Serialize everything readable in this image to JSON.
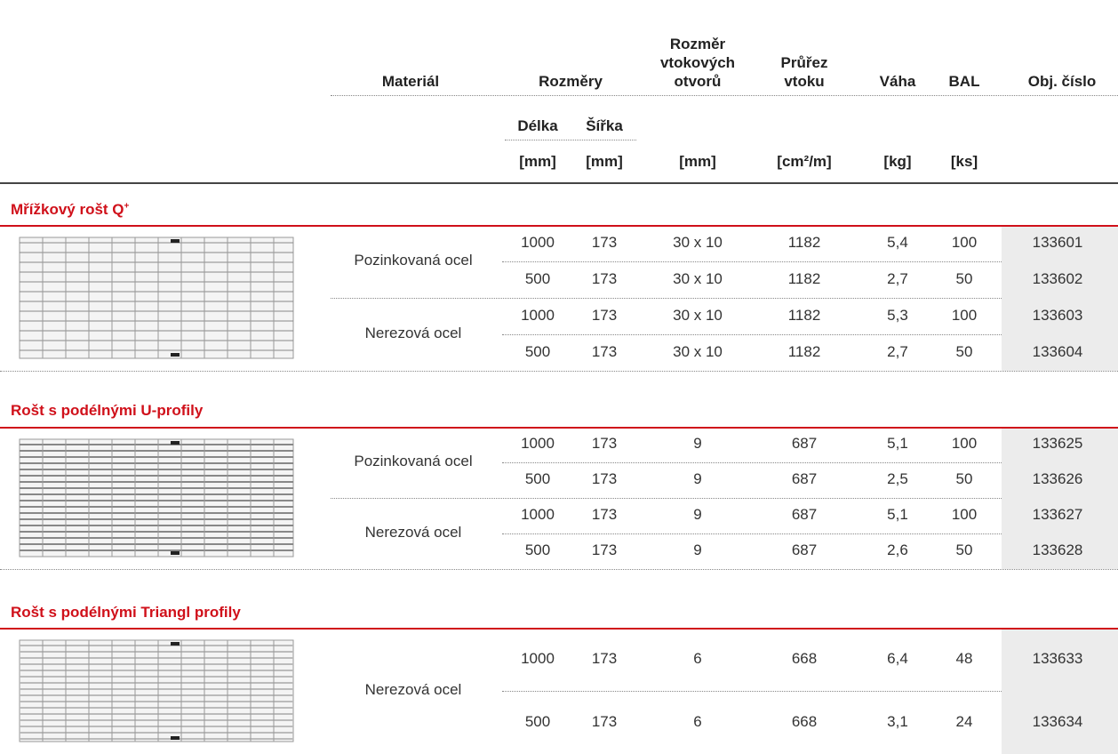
{
  "header": {
    "material": "Materiál",
    "dimensions": "Rozměry",
    "inlet_size": [
      "Rozměr",
      "vtokových",
      "otvorů"
    ],
    "inlet_area": [
      "Průřez",
      "vtoku"
    ],
    "weight": "Váha",
    "pack": "BAL",
    "order_no": "Obj. číslo",
    "length": "Délka",
    "width": "Šířka",
    "units": [
      "[mm]",
      "[mm]",
      "[mm]",
      "[cm²/m]",
      "[kg]",
      "[ks]"
    ]
  },
  "sections": [
    {
      "title": "Mřížkový rošt Q",
      "title_sup": "+",
      "groups": [
        {
          "material": "Pozinkovaná ocel",
          "rows": [
            [
              "1000",
              "173",
              "30 x 10",
              "1182",
              "5,4",
              "100",
              "133601"
            ],
            [
              "500",
              "173",
              "30 x 10",
              "1182",
              "2,7",
              "50",
              "133602"
            ]
          ]
        },
        {
          "material": "Nerezová ocel",
          "rows": [
            [
              "1000",
              "173",
              "30 x 10",
              "1182",
              "5,3",
              "100",
              "133603"
            ],
            [
              "500",
              "173",
              "30 x 10",
              "1182",
              "2,7",
              "50",
              "133604"
            ]
          ]
        }
      ]
    },
    {
      "title": "Rošt s podélnými U-profily",
      "groups": [
        {
          "material": "Pozinkovaná ocel",
          "rows": [
            [
              "1000",
              "173",
              "9",
              "687",
              "5,1",
              "100",
              "133625"
            ],
            [
              "500",
              "173",
              "9",
              "687",
              "2,5",
              "50",
              "133626"
            ]
          ]
        },
        {
          "material": "Nerezová ocel",
          "rows": [
            [
              "1000",
              "173",
              "9",
              "687",
              "5,1",
              "100",
              "133627"
            ],
            [
              "500",
              "173",
              "9",
              "687",
              "2,6",
              "50",
              "133628"
            ]
          ]
        }
      ]
    },
    {
      "title": "Rošt s podélnými Triangl profily",
      "groups": [
        {
          "material": "Nerezová ocel",
          "rows": [
            [
              "1000",
              "173",
              "6",
              "668",
              "6,4",
              "48",
              "133633"
            ],
            [
              "500",
              "173",
              "6",
              "668",
              "3,1",
              "24",
              "133634"
            ]
          ]
        }
      ]
    }
  ]
}
